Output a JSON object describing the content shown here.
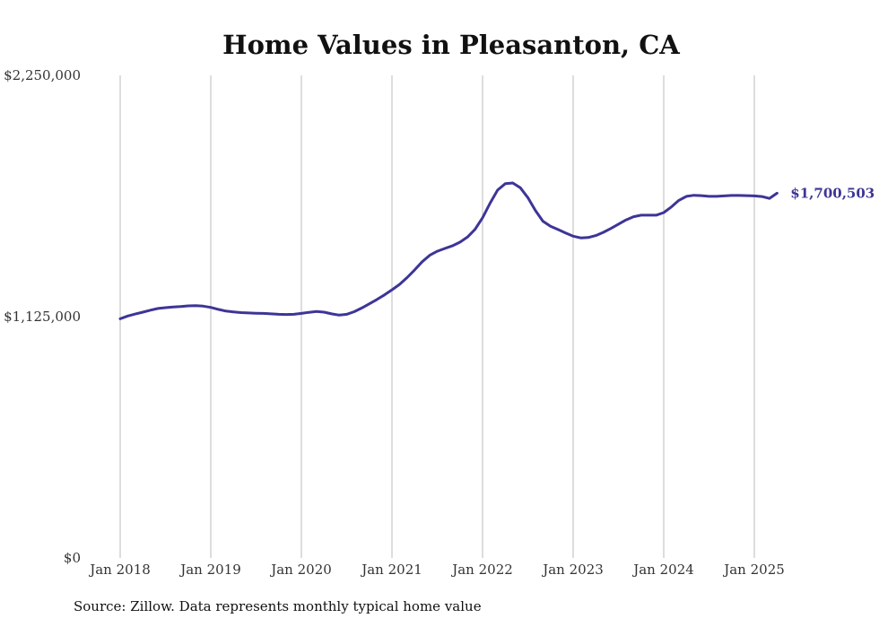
{
  "chart_data": {
    "type": "line",
    "title": "Home Values in Pleasanton, CA",
    "xlabel": "",
    "ylabel": "",
    "ylim": [
      0,
      2250000
    ],
    "y_ticks": [
      {
        "value": 0,
        "label": "$0"
      },
      {
        "value": 1125000,
        "label": "$1,125,000"
      },
      {
        "value": 2250000,
        "label": "$2,250,000"
      }
    ],
    "x_ticks": [
      "Jan 2018",
      "Jan 2019",
      "Jan 2020",
      "Jan 2021",
      "Jan 2022",
      "Jan 2023",
      "Jan 2024",
      "Jan 2025"
    ],
    "grid": "vertical",
    "line_color": "#3d3597",
    "series": [
      {
        "name": "",
        "x": [
          "2018-01",
          "2018-02",
          "2018-03",
          "2018-04",
          "2018-05",
          "2018-06",
          "2018-07",
          "2018-08",
          "2018-09",
          "2018-10",
          "2018-11",
          "2018-12",
          "2019-01",
          "2019-02",
          "2019-03",
          "2019-04",
          "2019-05",
          "2019-06",
          "2019-07",
          "2019-08",
          "2019-09",
          "2019-10",
          "2019-11",
          "2019-12",
          "2020-01",
          "2020-02",
          "2020-03",
          "2020-04",
          "2020-05",
          "2020-06",
          "2020-07",
          "2020-08",
          "2020-09",
          "2020-10",
          "2020-11",
          "2020-12",
          "2021-01",
          "2021-02",
          "2021-03",
          "2021-04",
          "2021-05",
          "2021-06",
          "2021-07",
          "2021-08",
          "2021-09",
          "2021-10",
          "2021-11",
          "2021-12",
          "2022-01",
          "2022-02",
          "2022-03",
          "2022-04",
          "2022-05",
          "2022-06",
          "2022-07",
          "2022-08",
          "2022-09",
          "2022-10",
          "2022-11",
          "2022-12",
          "2023-01",
          "2023-02",
          "2023-03",
          "2023-04",
          "2023-05",
          "2023-06",
          "2023-07",
          "2023-08",
          "2023-09",
          "2023-10",
          "2023-11",
          "2023-12",
          "2024-01",
          "2024-02",
          "2024-03",
          "2024-04",
          "2024-05",
          "2024-06",
          "2024-07",
          "2024-08",
          "2024-09",
          "2024-10",
          "2024-11",
          "2024-12",
          "2025-01",
          "2025-02",
          "2025-03",
          "2025-04"
        ],
        "values": [
          1115000,
          1128000,
          1137000,
          1146000,
          1155000,
          1163000,
          1167000,
          1170000,
          1172000,
          1175000,
          1176000,
          1174000,
          1168000,
          1159000,
          1151000,
          1147000,
          1144000,
          1142000,
          1141000,
          1140000,
          1138000,
          1136000,
          1135000,
          1136000,
          1140000,
          1145000,
          1149000,
          1146000,
          1138000,
          1132000,
          1136000,
          1148000,
          1165000,
          1185000,
          1205000,
          1226000,
          1250000,
          1275000,
          1307000,
          1343000,
          1381000,
          1411000,
          1430000,
          1443000,
          1455000,
          1472000,
          1496000,
          1532000,
          1586000,
          1654000,
          1715000,
          1745000,
          1748000,
          1726000,
          1680000,
          1620000,
          1570000,
          1546000,
          1531000,
          1515000,
          1500000,
          1492000,
          1494000,
          1503000,
          1518000,
          1536000,
          1556000,
          1576000,
          1591000,
          1598000,
          1598000,
          1598000,
          1610000,
          1636000,
          1667000,
          1686000,
          1691000,
          1689000,
          1686000,
          1686000,
          1688000,
          1690000,
          1690000,
          1689000,
          1688000,
          1685000,
          1676000,
          1700503
        ]
      }
    ],
    "end_label": "$1,700,503"
  },
  "footer": {
    "source": "Source: Zillow. Data represents monthly typical home value"
  }
}
